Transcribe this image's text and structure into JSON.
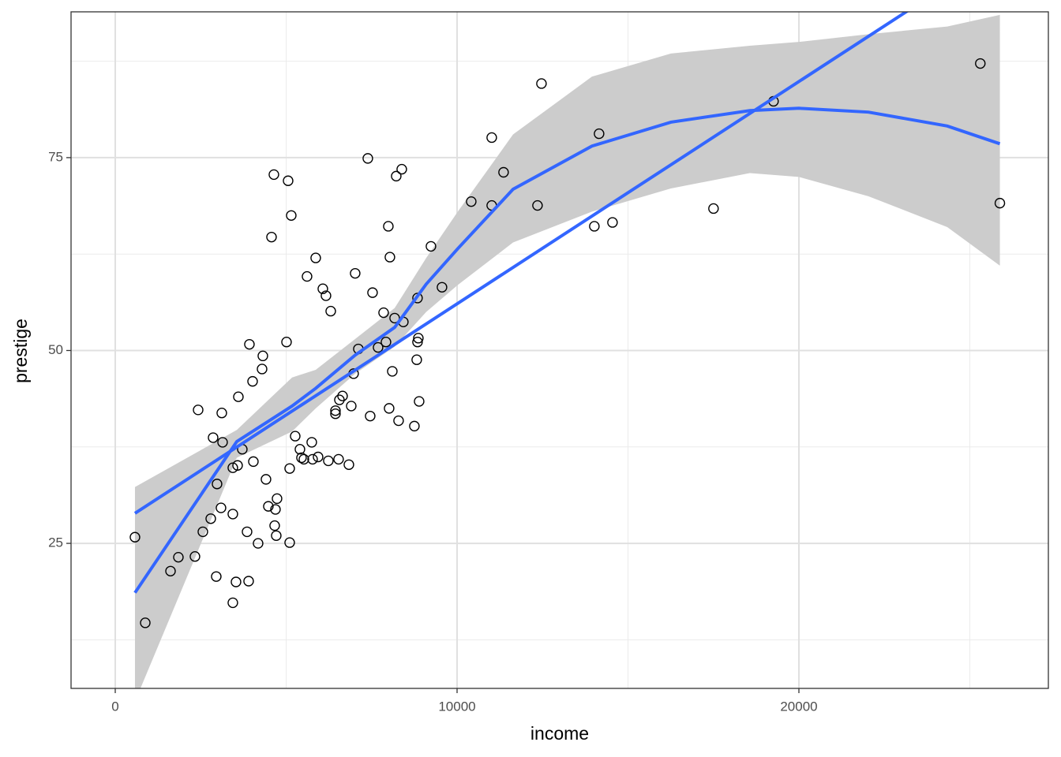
{
  "chart_data": {
    "type": "scatter",
    "x_label": "income",
    "y_label": "prestige",
    "xlim": [
      -1293,
      27298
    ],
    "ylim": [
      6.2,
      93.9
    ],
    "xticks": [
      0,
      10000,
      20000
    ],
    "yticks": [
      25,
      50,
      75
    ],
    "xminor": [
      5000,
      15000,
      25000
    ],
    "yminor": [
      12.5,
      37.5,
      62.5,
      87.5
    ],
    "grid": true,
    "point_color": "#000000",
    "x": [
      577,
      878,
      1617,
      1847,
      2332,
      2425,
      2563,
      2794,
      2863,
      2955,
      2978,
      3094,
      3117,
      3140,
      3440,
      3440,
      3440,
      3533,
      3579,
      3602,
      3717,
      3856,
      3902,
      3925,
      4018,
      4041,
      4179,
      4295,
      4318,
      4410,
      4479,
      4572,
      4641,
      4664,
      4687,
      4710,
      4733,
      5011,
      5057,
      5103,
      5103,
      5149,
      5265,
      5403,
      5449,
      5519,
      5611,
      5749,
      5773,
      5865,
      5934,
      6073,
      6165,
      6234,
      6304,
      6442,
      6442,
      6534,
      6558,
      6650,
      6835,
      6904,
      6973,
      7019,
      7112,
      7389,
      7458,
      7527,
      7689,
      7851,
      7920,
      7989,
      8012,
      8035,
      8105,
      8174,
      8220,
      8289,
      8382,
      8428,
      8751,
      8820,
      8843,
      8843,
      8867,
      8890,
      9236,
      9559,
      10414,
      11014,
      11014,
      11360,
      12353,
      12469,
      14016,
      14154,
      14547,
      17502,
      19257,
      25307,
      25879
    ],
    "y": [
      25.8,
      14.7,
      21.4,
      23.2,
      23.3,
      42.3,
      26.5,
      28.2,
      38.7,
      20.7,
      32.7,
      29.6,
      41.9,
      38.1,
      34.8,
      28.8,
      17.3,
      20.0,
      35.1,
      44.0,
      37.2,
      26.5,
      20.1,
      50.8,
      46.0,
      35.6,
      25.0,
      47.6,
      49.3,
      33.3,
      29.8,
      64.7,
      72.8,
      27.3,
      29.4,
      26.0,
      30.8,
      51.1,
      72.0,
      34.7,
      25.1,
      67.5,
      38.9,
      37.2,
      36.1,
      35.9,
      59.6,
      38.1,
      35.9,
      62.0,
      36.2,
      58.0,
      57.1,
      35.7,
      55.1,
      42.2,
      41.8,
      35.9,
      43.6,
      44.1,
      35.2,
      42.8,
      47.0,
      60.0,
      50.2,
      74.9,
      41.5,
      57.5,
      50.4,
      54.9,
      51.1,
      66.1,
      42.5,
      62.1,
      47.3,
      54.2,
      72.6,
      40.9,
      73.5,
      53.7,
      40.2,
      48.8,
      51.1,
      56.8,
      51.6,
      43.4,
      63.5,
      58.2,
      69.3,
      77.6,
      68.8,
      73.1,
      68.8,
      84.6,
      66.1,
      78.1,
      66.6,
      68.4,
      82.3,
      87.2,
      69.1
    ],
    "band": {
      "color": "#cccccc",
      "x": [
        577,
        3556,
        5172,
        5865,
        7019,
        8174,
        9097,
        10021,
        11637,
        13946,
        16255,
        18564,
        20000,
        22032,
        24341,
        25879
      ],
      "lower": [
        4.5,
        36.1,
        39.5,
        42.5,
        47.0,
        50.5,
        55.0,
        58.5,
        64.0,
        68.0,
        71.0,
        73.0,
        72.5,
        70.0,
        66.0,
        61.0
      ],
      "upper": [
        32.3,
        39.7,
        46.5,
        47.5,
        51.5,
        55.5,
        62.0,
        68.0,
        78.0,
        85.5,
        88.5,
        89.5,
        90.0,
        91.0,
        92.0,
        93.5
      ]
    },
    "fits": [
      {
        "color": "#3366ff",
        "x": [
          577,
          25879
        ],
        "y": [
          28.9,
          101.8
        ]
      },
      {
        "color": "#3366ff",
        "x": [
          577,
          3556,
          5172,
          5865,
          7019,
          8174,
          9097,
          10021,
          11637,
          13946,
          16255,
          18564,
          20000,
          22032,
          24341,
          25879
        ],
        "y": [
          18.6,
          38.2,
          42.8,
          45.1,
          49.4,
          53.0,
          58.6,
          63.2,
          70.9,
          76.5,
          79.6,
          81.1,
          81.4,
          80.9,
          79.1,
          76.8
        ]
      }
    ]
  }
}
